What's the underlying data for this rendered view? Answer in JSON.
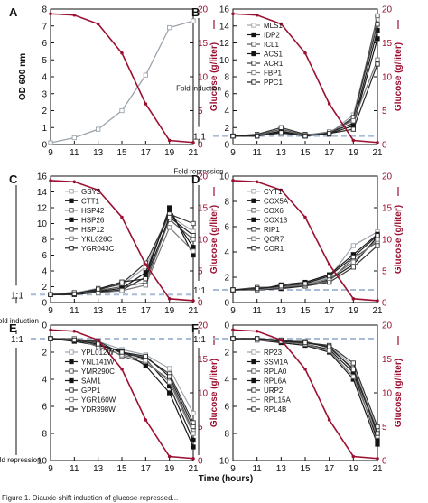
{
  "figure": {
    "x_axis_label": "Time (hours)",
    "caption_fragment": "Figure 1. Diauxic-shift induction of glucose-repressed...",
    "fold_induction_label": "Fold induction",
    "fold_repression_label": "Fold repression",
    "ratio_label": "1:1",
    "glucose_label": "Glucose (g/liter)",
    "od_label": "OD 600 nm",
    "colors": {
      "expression": "#1a1a1a",
      "glucose": "#9b1030",
      "baseline": "#a9bcd6"
    }
  },
  "chart_data": [
    {
      "panel": "A",
      "type": "line",
      "x": [
        9,
        11,
        13,
        15,
        17,
        19,
        21
      ],
      "xlim": [
        9,
        21
      ],
      "ylim_left": [
        0,
        8
      ],
      "ylim_right": [
        0,
        20
      ],
      "left_ticks": [
        "0",
        "1",
        "2",
        "3",
        "4",
        "5",
        "6",
        "7",
        "8"
      ],
      "right_ticks": [
        "0",
        "5",
        "10",
        "15",
        "20"
      ],
      "left_label": "OD 600 nm",
      "right_label": "Glucose (g/liter)",
      "series": [
        {
          "name": "OD 600 nm",
          "axis": "left",
          "values": [
            0.1,
            0.4,
            0.9,
            2.0,
            4.1,
            6.9,
            7.3
          ]
        },
        {
          "name": "Glucose",
          "axis": "right",
          "values": [
            19.3,
            19.1,
            17.8,
            13.5,
            6.0,
            0.6,
            0.3
          ]
        }
      ]
    },
    {
      "panel": "B",
      "type": "line",
      "x": [
        9,
        11,
        13,
        15,
        17,
        19,
        21
      ],
      "xlim": [
        9,
        21
      ],
      "ylim_left": [
        0,
        16
      ],
      "ylim_right": [
        0,
        20
      ],
      "left_ticks": [
        "0",
        "2",
        "4",
        "6",
        "8",
        "10",
        "12",
        "14",
        "16"
      ],
      "right_ticks": [
        "0",
        "5",
        "10",
        "15",
        "20"
      ],
      "baseline": 1,
      "legend": [
        "MLS1",
        "IDP2",
        "ICL1",
        "ACS1",
        "ACR1",
        "FBP1",
        "PPC1"
      ],
      "series": [
        {
          "name": "MLS1",
          "axis": "left",
          "values": [
            1.0,
            1.1,
            1.4,
            1.2,
            1.3,
            3.5,
            14.8
          ]
        },
        {
          "name": "IDP2",
          "axis": "left",
          "values": [
            1.0,
            1.0,
            1.6,
            1.0,
            1.4,
            2.5,
            13.5
          ]
        },
        {
          "name": "ICL1",
          "axis": "left",
          "values": [
            1.0,
            1.1,
            1.8,
            1.1,
            1.4,
            3.0,
            15.2
          ]
        },
        {
          "name": "ACS1",
          "axis": "left",
          "values": [
            1.0,
            1.0,
            1.5,
            1.0,
            1.3,
            2.2,
            12.5
          ]
        },
        {
          "name": "ACR1",
          "axis": "left",
          "values": [
            1.0,
            1.2,
            2.0,
            1.2,
            1.2,
            3.2,
            14.2
          ]
        },
        {
          "name": "FBP1",
          "axis": "left",
          "values": [
            1.0,
            1.1,
            1.3,
            1.1,
            1.5,
            2.8,
            10.0
          ]
        },
        {
          "name": "PPC1",
          "axis": "left",
          "values": [
            1.0,
            1.0,
            1.4,
            1.0,
            1.3,
            1.8,
            9.5
          ]
        },
        {
          "name": "Glucose",
          "axis": "right",
          "values": [
            19.3,
            19.1,
            17.8,
            13.5,
            6.0,
            0.6,
            0.3
          ]
        }
      ]
    },
    {
      "panel": "C",
      "type": "line",
      "x": [
        9,
        11,
        13,
        15,
        17,
        19,
        21
      ],
      "xlim": [
        9,
        21
      ],
      "ylim_left": [
        0,
        16
      ],
      "ylim_right": [
        0,
        20
      ],
      "left_ticks": [
        "0",
        "2",
        "4",
        "6",
        "8",
        "10",
        "12",
        "14",
        "16"
      ],
      "right_ticks": [
        "0",
        "5",
        "10",
        "15",
        "20"
      ],
      "baseline": 1,
      "legend": [
        "GSY2",
        "CTT1",
        "HSP42",
        "HSP26",
        "HSP12",
        "YKL026C",
        "YGR043C"
      ],
      "series": [
        {
          "name": "GSY2",
          "axis": "left",
          "values": [
            1.0,
            1.2,
            1.8,
            2.2,
            4.5,
            11.0,
            9.0
          ]
        },
        {
          "name": "CTT1",
          "axis": "left",
          "values": [
            1.0,
            1.0,
            1.3,
            1.6,
            3.2,
            12.0,
            6.0
          ]
        },
        {
          "name": "HSP42",
          "axis": "left",
          "values": [
            1.0,
            1.1,
            1.5,
            2.0,
            2.5,
            10.5,
            8.0
          ]
        },
        {
          "name": "HSP26",
          "axis": "left",
          "values": [
            1.0,
            1.2,
            1.4,
            1.8,
            3.8,
            11.5,
            7.0
          ]
        },
        {
          "name": "HSP12",
          "axis": "left",
          "values": [
            1.0,
            1.0,
            1.6,
            2.4,
            5.0,
            11.2,
            10.0
          ]
        },
        {
          "name": "YKL026C",
          "axis": "left",
          "values": [
            1.0,
            1.3,
            1.2,
            1.5,
            2.2,
            9.5,
            6.5
          ]
        },
        {
          "name": "YGR043C",
          "axis": "left",
          "values": [
            1.0,
            1.1,
            1.7,
            2.6,
            3.0,
            10.8,
            8.5
          ]
        },
        {
          "name": "Glucose",
          "axis": "right",
          "values": [
            19.3,
            19.1,
            17.8,
            13.5,
            6.0,
            0.6,
            0.3
          ]
        }
      ]
    },
    {
      "panel": "D",
      "type": "line",
      "x": [
        9,
        11,
        13,
        15,
        17,
        19,
        21
      ],
      "xlim": [
        9,
        21
      ],
      "ylim_left": [
        0,
        10
      ],
      "ylim_right": [
        0,
        20
      ],
      "left_ticks": [
        "0",
        "2",
        "4",
        "6",
        "8",
        "10"
      ],
      "right_ticks": [
        "0",
        "5",
        "10",
        "15",
        "20"
      ],
      "baseline": 1,
      "legend": [
        "CYT1",
        "COX5A",
        "COX6",
        "COX13",
        "RIP1",
        "QCR7",
        "COR1"
      ],
      "series": [
        {
          "name": "CYT1",
          "axis": "left",
          "values": [
            1.0,
            1.1,
            1.3,
            1.5,
            2.0,
            4.5,
            5.6
          ]
        },
        {
          "name": "COX5A",
          "axis": "left",
          "values": [
            1.0,
            1.0,
            1.1,
            1.3,
            1.8,
            3.0,
            5.2
          ]
        },
        {
          "name": "COX6",
          "axis": "left",
          "values": [
            1.0,
            1.2,
            1.2,
            1.4,
            1.7,
            3.5,
            4.8
          ]
        },
        {
          "name": "COX13",
          "axis": "left",
          "values": [
            1.0,
            1.0,
            1.4,
            1.6,
            2.2,
            3.8,
            5.4
          ]
        },
        {
          "name": "RIP1",
          "axis": "left",
          "values": [
            1.0,
            1.1,
            1.2,
            1.3,
            1.6,
            2.8,
            4.5
          ]
        },
        {
          "name": "QCR7",
          "axis": "left",
          "values": [
            1.0,
            1.0,
            1.2,
            1.4,
            1.9,
            3.2,
            5.0
          ]
        },
        {
          "name": "COR1",
          "axis": "left",
          "values": [
            1.0,
            1.1,
            1.3,
            1.5,
            2.1,
            3.6,
            5.3
          ]
        },
        {
          "name": "Glucose",
          "axis": "right",
          "values": [
            19.3,
            19.1,
            17.8,
            13.5,
            6.0,
            0.6,
            0.3
          ]
        }
      ]
    },
    {
      "panel": "E",
      "type": "line",
      "x": [
        9,
        11,
        13,
        15,
        17,
        19,
        21
      ],
      "xlim": [
        9,
        21
      ],
      "ylim_left": [
        0,
        10
      ],
      "ylim_right": [
        0,
        20
      ],
      "inverted_left": true,
      "left_ticks": [
        "0",
        "2",
        "4",
        "6",
        "8",
        "10"
      ],
      "right_ticks": [
        "0",
        "5",
        "10",
        "15",
        "20"
      ],
      "baseline": 1,
      "legend": [
        "YPL012W",
        "YNL141W",
        "YMR290C",
        "SAM1",
        "GPP1",
        "YGR160W",
        "YDR398W"
      ],
      "series": [
        {
          "name": "YPL012W",
          "axis": "left",
          "values": [
            1.0,
            1.0,
            1.2,
            1.8,
            2.2,
            3.2,
            6.5
          ]
        },
        {
          "name": "YNL141W",
          "axis": "left",
          "values": [
            1.0,
            1.1,
            1.4,
            2.0,
            2.5,
            4.5,
            8.5
          ]
        },
        {
          "name": "YMR290C",
          "axis": "left",
          "values": [
            1.0,
            1.0,
            1.3,
            2.3,
            2.8,
            4.0,
            7.8
          ]
        },
        {
          "name": "SAM1",
          "axis": "left",
          "values": [
            1.0,
            1.2,
            1.5,
            1.9,
            3.0,
            5.0,
            9.0
          ]
        },
        {
          "name": "GPP1",
          "axis": "left",
          "values": [
            1.0,
            1.1,
            1.2,
            2.1,
            2.4,
            3.6,
            7.2
          ]
        },
        {
          "name": "YGR160W",
          "axis": "left",
          "values": [
            1.0,
            1.0,
            1.6,
            2.2,
            2.6,
            4.2,
            8.0
          ]
        },
        {
          "name": "YDR398W",
          "axis": "left",
          "values": [
            1.0,
            1.1,
            1.4,
            2.0,
            2.3,
            3.8,
            7.5
          ]
        },
        {
          "name": "Glucose",
          "axis": "right",
          "values": [
            19.3,
            19.1,
            17.8,
            13.5,
            6.0,
            0.6,
            0.3
          ]
        }
      ]
    },
    {
      "panel": "F",
      "type": "line",
      "x": [
        9,
        11,
        13,
        15,
        17,
        19,
        21
      ],
      "xlim": [
        9,
        21
      ],
      "ylim_left": [
        0,
        10
      ],
      "ylim_right": [
        0,
        20
      ],
      "inverted_left": true,
      "left_ticks": [
        "0",
        "2",
        "4",
        "6",
        "8",
        "10"
      ],
      "right_ticks": [
        "0",
        "5",
        "10",
        "15",
        "20"
      ],
      "baseline": 1,
      "legend": [
        "RP23",
        "SSM1A",
        "RPLA0",
        "RPL6A",
        "URP2",
        "RPL15A",
        "RPL4B"
      ],
      "series": [
        {
          "name": "RP23",
          "axis": "left",
          "values": [
            1.0,
            1.0,
            1.1,
            1.3,
            1.6,
            3.0,
            8.0
          ]
        },
        {
          "name": "SSM1A",
          "axis": "left",
          "values": [
            1.0,
            1.1,
            1.2,
            1.4,
            1.8,
            3.5,
            8.5
          ]
        },
        {
          "name": "RPLA0",
          "axis": "left",
          "values": [
            1.0,
            1.0,
            1.2,
            1.2,
            1.7,
            3.2,
            7.8
          ]
        },
        {
          "name": "RPL6A",
          "axis": "left",
          "values": [
            1.0,
            1.1,
            1.3,
            1.5,
            2.0,
            4.0,
            8.8
          ]
        },
        {
          "name": "URP2",
          "axis": "left",
          "values": [
            1.0,
            1.0,
            1.1,
            1.3,
            1.5,
            2.8,
            7.5
          ]
        },
        {
          "name": "RPL15A",
          "axis": "left",
          "values": [
            1.0,
            1.1,
            1.2,
            1.4,
            1.9,
            3.8,
            8.2
          ]
        },
        {
          "name": "RPL4B",
          "axis": "left",
          "values": [
            1.0,
            1.0,
            1.2,
            1.3,
            1.6,
            3.3,
            8.0
          ]
        },
        {
          "name": "Glucose",
          "axis": "right",
          "values": [
            19.3,
            19.1,
            17.8,
            13.5,
            6.0,
            0.6,
            0.3
          ]
        }
      ]
    }
  ]
}
